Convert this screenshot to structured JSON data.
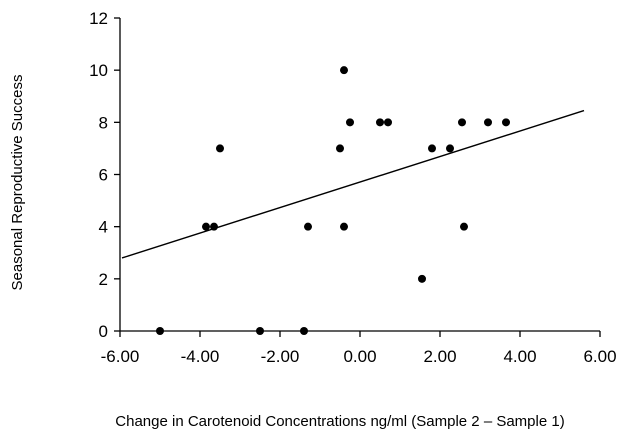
{
  "chart_data": {
    "type": "scatter",
    "title": "",
    "xlabel": "Change in Carotenoid Concentrations ng/ml (Sample 2 – Sample 1)",
    "ylabel": "Seasonal Reproductive Success",
    "xlim": [
      -6,
      6
    ],
    "ylim": [
      0,
      12
    ],
    "x_ticks": [
      "-6.00",
      "-4.00",
      "-2.00",
      "0.00",
      "2.00",
      "4.00",
      "6.00"
    ],
    "y_ticks": [
      "0",
      "2",
      "4",
      "6",
      "8",
      "10",
      "12"
    ],
    "grid": false,
    "legend": "none",
    "points": [
      {
        "x": -5.0,
        "y": 0
      },
      {
        "x": -2.5,
        "y": 0
      },
      {
        "x": -1.4,
        "y": 0
      },
      {
        "x": -3.85,
        "y": 4
      },
      {
        "x": -3.65,
        "y": 4
      },
      {
        "x": -3.5,
        "y": 7
      },
      {
        "x": -1.3,
        "y": 4
      },
      {
        "x": -0.5,
        "y": 7
      },
      {
        "x": -0.4,
        "y": 10
      },
      {
        "x": -0.4,
        "y": 4
      },
      {
        "x": -0.25,
        "y": 8
      },
      {
        "x": 0.5,
        "y": 8
      },
      {
        "x": 0.7,
        "y": 8
      },
      {
        "x": 1.55,
        "y": 2
      },
      {
        "x": 1.8,
        "y": 7
      },
      {
        "x": 2.25,
        "y": 7
      },
      {
        "x": 2.55,
        "y": 8
      },
      {
        "x": 2.6,
        "y": 4
      },
      {
        "x": 3.2,
        "y": 8
      },
      {
        "x": 3.65,
        "y": 8
      }
    ],
    "trendline": {
      "x": [
        -5.95,
        5.6
      ],
      "y": [
        2.8,
        8.45
      ]
    },
    "colors": {
      "points": "#000000",
      "line": "#000000",
      "axis": "#000000"
    }
  }
}
